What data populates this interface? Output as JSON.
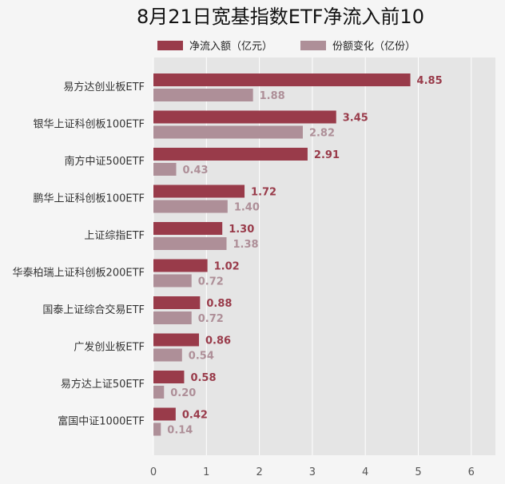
{
  "chart_data": {
    "type": "bar",
    "orientation": "horizontal",
    "title": "8月21日宽基指数ETF净流入前10",
    "categories": [
      "易方达创业板ETF",
      "银华上证科创板100ETF",
      "南方中证500ETF",
      "鹏华上证科创板100ETF",
      "上证综指ETF",
      "华泰柏瑞上证科创板200ETF",
      "国泰上证综合交易ETF",
      "广发创业板ETF",
      "易方达上证50ETF",
      "富国中证1000ETF"
    ],
    "series": [
      {
        "name": "净流入额（亿元）",
        "color": "#993b4a",
        "values": [
          4.85,
          3.45,
          2.91,
          1.72,
          1.3,
          1.02,
          0.88,
          0.86,
          0.58,
          0.42
        ],
        "labels": [
          "4.85",
          "3.45",
          "2.91",
          "1.72",
          "1.30",
          "1.02",
          "0.88",
          "0.86",
          "0.58",
          "0.42"
        ]
      },
      {
        "name": "份额变化（亿份）",
        "color": "#ae8f98",
        "values": [
          1.88,
          2.82,
          0.43,
          1.4,
          1.38,
          0.72,
          0.72,
          0.54,
          0.2,
          0.14
        ],
        "labels": [
          "1.88",
          "2.82",
          "0.43",
          "1.40",
          "1.38",
          "0.72",
          "0.72",
          "0.54",
          "0.20",
          "0.14"
        ]
      }
    ],
    "xlim": [
      0,
      6.5
    ],
    "xticks": [
      "0",
      "1",
      "2",
      "3",
      "4",
      "5",
      "6"
    ],
    "xlabel": "",
    "ylabel": "",
    "grid": true,
    "legend_position": "top",
    "plot_background": "#e5e5e5"
  }
}
